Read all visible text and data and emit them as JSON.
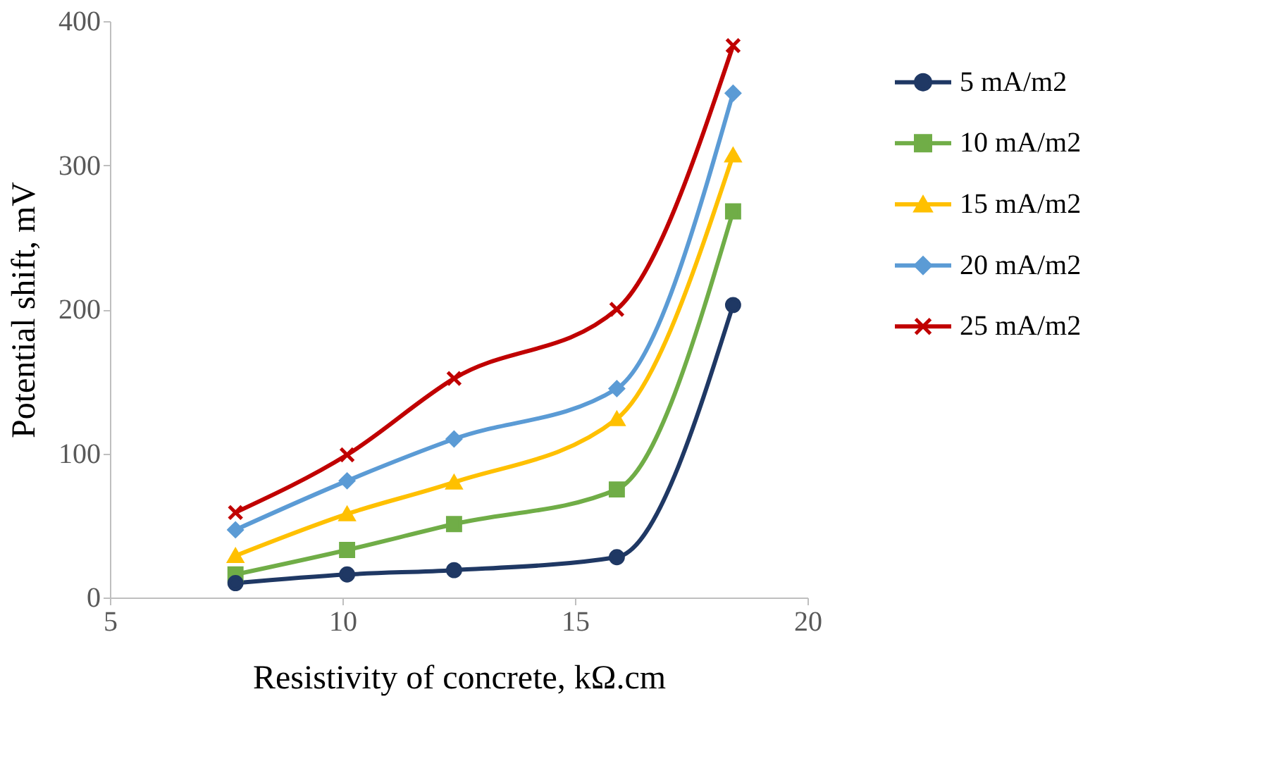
{
  "chart_data": {
    "type": "line",
    "xlabel": "Resistivity of concrete, kΩ.cm",
    "ylabel": "Potential shift, mV",
    "x": [
      7.7,
      10.1,
      12.4,
      15.9,
      18.4
    ],
    "series": [
      {
        "name": "5 mA/m2",
        "color": "#1f3864",
        "marker": "circle",
        "values": [
          10,
          16,
          19,
          28,
          203
        ]
      },
      {
        "name": "10 mA/m2",
        "color": "#70ad47",
        "marker": "square",
        "values": [
          16,
          33,
          51,
          75,
          268
        ]
      },
      {
        "name": "15 mA/m2",
        "color": "#ffc000",
        "marker": "triangle",
        "values": [
          29,
          58,
          80,
          124,
          307
        ]
      },
      {
        "name": "20 mA/m2",
        "color": "#5b9bd5",
        "marker": "diamond",
        "values": [
          47,
          81,
          110,
          145,
          350
        ]
      },
      {
        "name": "25 mA/m2",
        "color": "#c00000",
        "marker": "cross",
        "values": [
          59,
          99,
          152,
          200,
          383
        ]
      }
    ],
    "xlim": [
      5,
      20
    ],
    "xticks": [
      5,
      10,
      15,
      20
    ],
    "ylim": [
      0,
      400
    ],
    "yticks": [
      0,
      100,
      200,
      300,
      400
    ],
    "grid": false,
    "legend": "right",
    "line_style": "solid"
  }
}
